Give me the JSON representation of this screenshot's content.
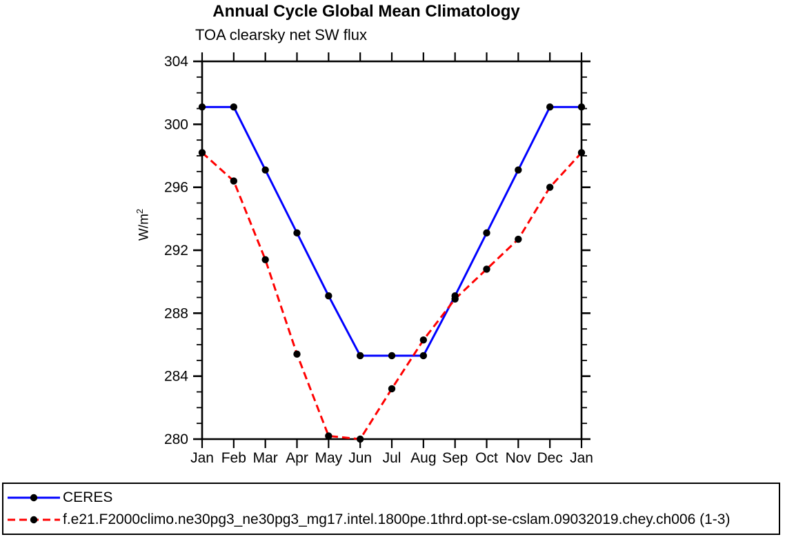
{
  "chart_data": {
    "type": "line",
    "title": "Annual Cycle Global Mean Climatology",
    "subtitle": "TOA clearsky net SW flux",
    "xlabel": "",
    "ylabel": "W/m²",
    "ylabel_base": "W/m",
    "ylabel_sup": "2",
    "categories": [
      "Jan",
      "Feb",
      "Mar",
      "Apr",
      "May",
      "Jun",
      "Jul",
      "Aug",
      "Sep",
      "Oct",
      "Nov",
      "Dec",
      "Jan"
    ],
    "ylim": [
      280,
      304
    ],
    "y_major_step": 4,
    "y_minor_step": 1,
    "grid": false,
    "legend_position": "bottom-box",
    "marker_color": "#000000",
    "axis_color": "#000000",
    "series": [
      {
        "name": "CERES",
        "color": "#0000ff",
        "dashed": false,
        "values": [
          301.1,
          301.1,
          297.1,
          293.1,
          289.1,
          285.3,
          285.3,
          285.3,
          289.1,
          293.1,
          297.1,
          301.1,
          301.1
        ]
      },
      {
        "name": "f.e21.F2000climo.ne30pg3_ne30pg3_mg17.intel.1800pe.1thrd.opt-se-cslam.09032019.chey.ch006 (1-3)",
        "color": "#ff0000",
        "dashed": true,
        "values": [
          298.2,
          296.4,
          291.4,
          285.4,
          280.2,
          280.0,
          283.2,
          286.3,
          288.9,
          290.8,
          292.7,
          296.0,
          298.2
        ]
      }
    ]
  }
}
